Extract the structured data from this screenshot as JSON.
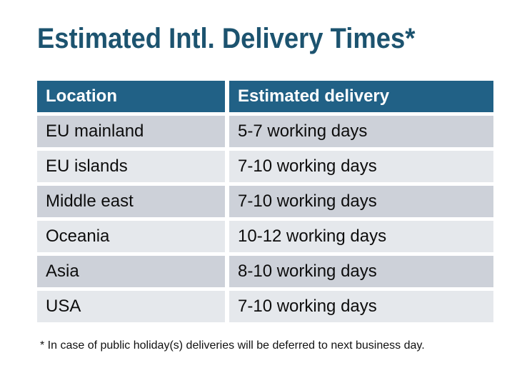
{
  "title": "Estimated Intl. Delivery Times*",
  "table": {
    "headers": {
      "location": "Location",
      "delivery": "Estimated delivery"
    },
    "rows": [
      {
        "location": "EU mainland",
        "delivery": "5-7 working days"
      },
      {
        "location": "EU islands",
        "delivery": "7-10 working days"
      },
      {
        "location": "Middle east",
        "delivery": "7-10 working days"
      },
      {
        "location": "Oceania",
        "delivery": "10-12 working days"
      },
      {
        "location": "Asia",
        "delivery": "8-10 working days"
      },
      {
        "location": "USA",
        "delivery": "7-10 working days"
      }
    ]
  },
  "footnote": "* In case of public holiday(s) deliveries will be deferred to next business day.",
  "colors": {
    "page_bg": "#ffffff",
    "title_text": "#1c536f",
    "header_bg": "#216186",
    "header_text": "#ffffff",
    "row_dark_bg": "#cdd1d9",
    "row_light_bg": "#e5e8ec",
    "cell_text": "#0d0d0d",
    "footnote_text": "#111111"
  }
}
